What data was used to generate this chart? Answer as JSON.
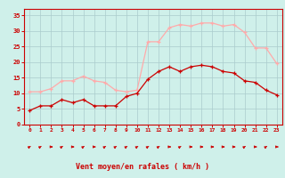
{
  "x": [
    0,
    1,
    2,
    3,
    4,
    5,
    6,
    7,
    8,
    9,
    10,
    11,
    12,
    13,
    14,
    15,
    16,
    17,
    18,
    19,
    20,
    21,
    22,
    23
  ],
  "mean_wind": [
    4.5,
    6,
    6,
    8,
    7,
    8,
    6,
    6,
    6,
    9,
    10,
    14.5,
    17,
    18.5,
    17,
    18.5,
    19,
    18.5,
    17,
    16.5,
    14,
    13.5,
    11,
    9.5
  ],
  "gust_wind": [
    10.5,
    10.5,
    11.5,
    14,
    14,
    15.5,
    14,
    13.5,
    11,
    10.5,
    11,
    26.5,
    26.5,
    31,
    32,
    31.5,
    32.5,
    32.5,
    31.5,
    32,
    29.5,
    24.5,
    24.5,
    19.5
  ],
  "mean_color": "#cc0000",
  "gust_color": "#ffaaaa",
  "bg_color": "#cff0ea",
  "grid_color": "#aacccc",
  "xlabel": "Vent moyen/en rafales ( km/h )",
  "xlabel_color": "#cc0000",
  "tick_color": "#cc0000",
  "ylim": [
    0,
    37
  ],
  "yticks": [
    0,
    5,
    10,
    15,
    20,
    25,
    30,
    35
  ],
  "xlim": [
    -0.5,
    23.5
  ],
  "arrow_angles": [
    45,
    45,
    0,
    45,
    0,
    45,
    0,
    45,
    45,
    45,
    45,
    45,
    45,
    0,
    45,
    0,
    0,
    0,
    0,
    0,
    45,
    0,
    45,
    0
  ]
}
